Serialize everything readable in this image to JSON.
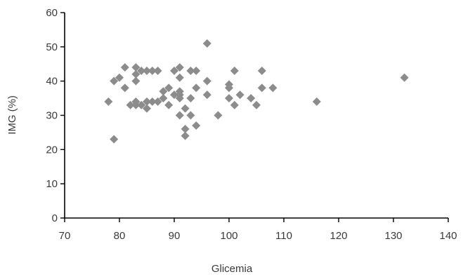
{
  "chart_data": {
    "type": "scatter",
    "title": "",
    "xlabel": "Glicemia",
    "ylabel": "IMG (%)",
    "xlim": [
      70,
      140
    ],
    "ylim": [
      0,
      60
    ],
    "xticks": [
      "70",
      "80",
      "90",
      "100",
      "110",
      "120",
      "130",
      "140"
    ],
    "yticks": [
      "0",
      "10",
      "20",
      "30",
      "40",
      "50",
      "60"
    ],
    "grid": false,
    "marker": "diamond",
    "marker_color": "#8c8c8c",
    "series": [
      {
        "x": [
          78,
          79,
          79,
          80,
          81,
          81,
          82,
          83,
          83,
          83,
          83,
          83,
          84,
          84,
          85,
          85,
          85,
          86,
          86,
          87,
          87,
          88,
          88,
          89,
          89,
          90,
          90,
          91,
          91,
          91,
          91,
          91,
          91,
          92,
          92,
          92,
          93,
          93,
          93,
          94,
          94,
          94,
          96,
          96,
          96,
          98,
          100,
          100,
          100,
          101,
          101,
          102,
          104,
          105,
          106,
          106,
          108,
          116,
          132
        ],
        "y": [
          34,
          23,
          40,
          41,
          38,
          44,
          33,
          33,
          40,
          42,
          44,
          34,
          43,
          33,
          43,
          32,
          34,
          43,
          34,
          43,
          34,
          37,
          35,
          33,
          38,
          43,
          36,
          44,
          41,
          35,
          30,
          36,
          37,
          32,
          24,
          26,
          43,
          35,
          30,
          43,
          38,
          27,
          51,
          40,
          36,
          30,
          39,
          38,
          35,
          43,
          33,
          36,
          35,
          33,
          43,
          38,
          38,
          34,
          41
        ]
      }
    ]
  }
}
